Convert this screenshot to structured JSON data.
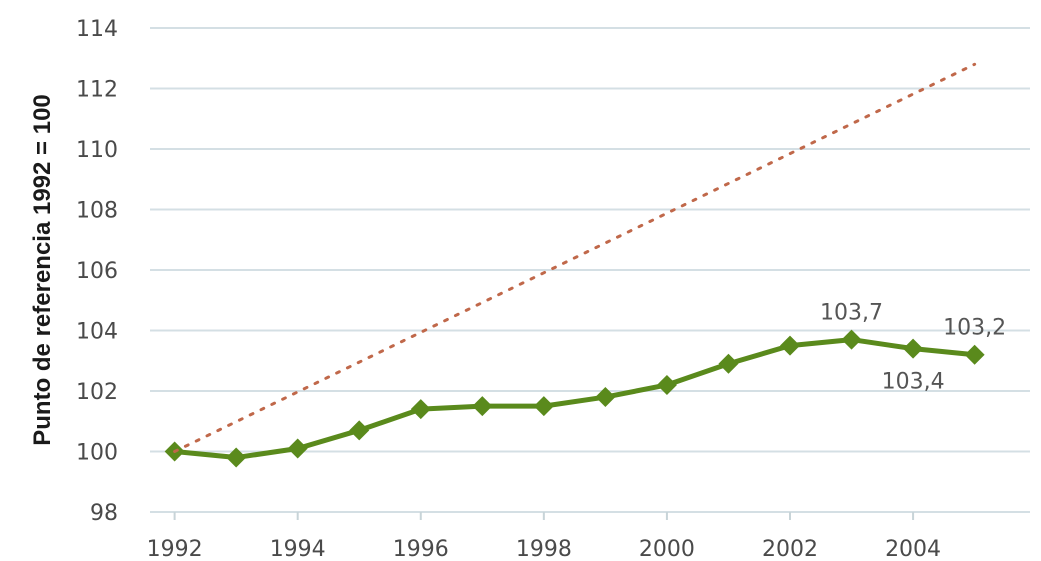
{
  "chart_data": {
    "type": "line",
    "title": "",
    "xlabel": "",
    "ylabel": "Punto de referencia 1992 = 100",
    "xlim": [
      1991.6,
      2005.9
    ],
    "ylim": [
      98,
      114
    ],
    "x_ticks": [
      "1992",
      "1994",
      "1996",
      "1998",
      "2000",
      "2002",
      "2004"
    ],
    "y_ticks": [
      "98",
      "100",
      "102",
      "104",
      "106",
      "108",
      "110",
      "112",
      "114"
    ],
    "grid": true,
    "legend": "none",
    "series": [
      {
        "style": "solid-markers",
        "color": "#5a8a1c",
        "x": [
          1992,
          1993,
          1994,
          1995,
          1996,
          1997,
          1998,
          1999,
          2000,
          2001,
          2002,
          2003,
          2004,
          2005
        ],
        "y": [
          100.0,
          99.8,
          100.1,
          100.7,
          101.4,
          101.5,
          101.5,
          101.8,
          102.2,
          102.9,
          103.5,
          103.7,
          103.4,
          103.2
        ]
      },
      {
        "style": "dotted",
        "color": "#c0684a",
        "x": [
          1992,
          2005
        ],
        "y": [
          100.0,
          112.8
        ]
      }
    ],
    "annotations": [
      {
        "text": "103,7",
        "x": 2003,
        "y": 103.7,
        "position": "above"
      },
      {
        "text": "103,4",
        "x": 2004,
        "y": 103.4,
        "position": "below"
      },
      {
        "text": "103,2",
        "x": 2005,
        "y": 103.2,
        "position": "above"
      }
    ]
  }
}
